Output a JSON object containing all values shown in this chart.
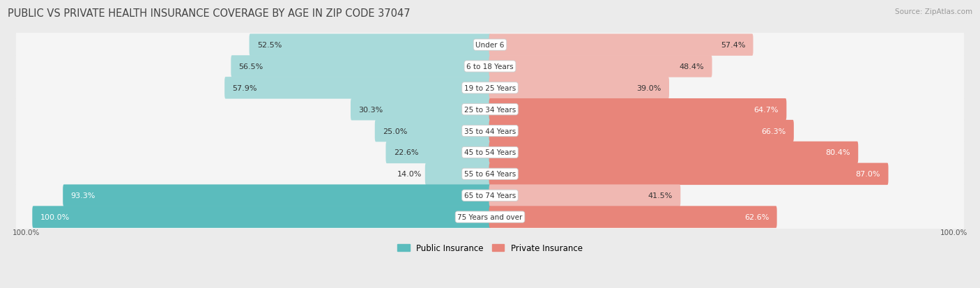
{
  "title": "PUBLIC VS PRIVATE HEALTH INSURANCE COVERAGE BY AGE IN ZIP CODE 37047",
  "source": "Source: ZipAtlas.com",
  "categories": [
    "Under 6",
    "6 to 18 Years",
    "19 to 25 Years",
    "25 to 34 Years",
    "35 to 44 Years",
    "45 to 54 Years",
    "55 to 64 Years",
    "65 to 74 Years",
    "75 Years and over"
  ],
  "public_values": [
    52.5,
    56.5,
    57.9,
    30.3,
    25.0,
    22.6,
    14.0,
    93.3,
    100.0
  ],
  "private_values": [
    57.4,
    48.4,
    39.0,
    64.7,
    66.3,
    80.4,
    87.0,
    41.5,
    62.6
  ],
  "public_color": "#5bbcbd",
  "public_color_light": "#a8dada",
  "private_color": "#e8857a",
  "private_color_light": "#f0b8b2",
  "bg_color": "#ebebeb",
  "row_bg_color": "#f5f5f5",
  "title_fontsize": 10.5,
  "source_fontsize": 7.5,
  "bar_label_fontsize": 8,
  "category_fontsize": 7.5,
  "legend_fontsize": 8.5,
  "axis_label_fontsize": 7.5,
  "max_value": 100.0,
  "pub_label_inside_threshold": 20,
  "priv_label_inside_threshold": 20
}
